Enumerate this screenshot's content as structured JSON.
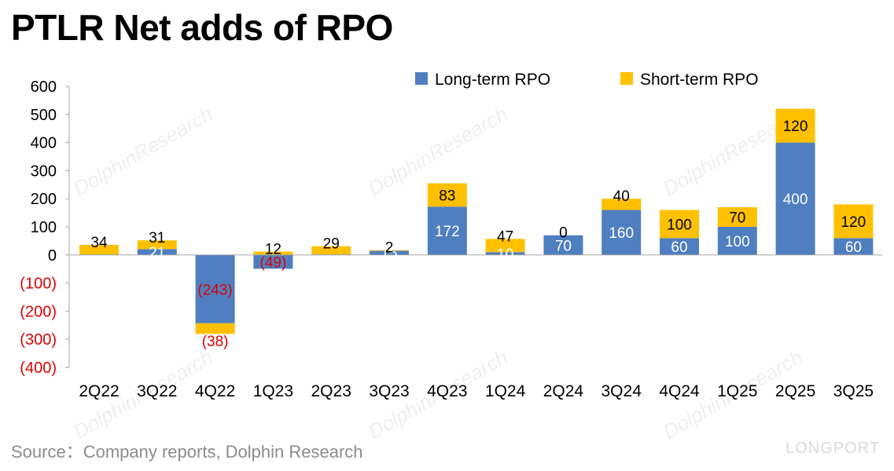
{
  "title": "PTLR Net adds of RPO",
  "source": "Source：Company reports, Dolphin Research",
  "brand": "LONGPORT",
  "watermark": "DolphinResearch",
  "colors": {
    "long_term": "#4f7fc0",
    "short_term": "#ffc000",
    "negative_label": "#e00000",
    "axis": "#a6a6a6"
  },
  "chart_data": {
    "type": "bar",
    "stacked": true,
    "title": "PTLR Net adds of RPO",
    "xlabel": "",
    "ylabel": "",
    "ylim": [
      -400,
      600
    ],
    "yticks": [
      600,
      500,
      400,
      300,
      200,
      100,
      0,
      -100,
      -200,
      -300,
      -400
    ],
    "ytick_labels": [
      "600",
      "500",
      "400",
      "300",
      "200",
      "100",
      "0",
      "(100)",
      "(200)",
      "(300)",
      "(400)"
    ],
    "grid": false,
    "legend_position": "top-right",
    "categories": [
      "2Q22",
      "3Q22",
      "4Q22",
      "1Q23",
      "2Q23",
      "3Q23",
      "4Q23",
      "1Q24",
      "2Q24",
      "3Q24",
      "4Q24",
      "1Q25",
      "2Q25",
      "3Q25"
    ],
    "series": [
      {
        "name": "Long-term RPO",
        "color": "#4f7fc0",
        "values": [
          2,
          21,
          -243,
          -49,
          2,
          15,
          172,
          10,
          70,
          160,
          60,
          100,
          400,
          60
        ],
        "labels": [
          "",
          "21",
          "(243)",
          "(49)",
          "",
          "15",
          "172",
          "10",
          "70",
          "160",
          "60",
          "100",
          "400",
          "60"
        ]
      },
      {
        "name": "Short-term RPO",
        "color": "#ffc000",
        "values": [
          34,
          31,
          -38,
          12,
          29,
          2,
          83,
          47,
          0,
          40,
          100,
          70,
          120,
          120
        ],
        "labels": [
          "34",
          "31",
          "(38)",
          "12",
          "29",
          "2",
          "83",
          "47",
          "0",
          "40",
          "100",
          "70",
          "120",
          "120"
        ]
      }
    ]
  }
}
